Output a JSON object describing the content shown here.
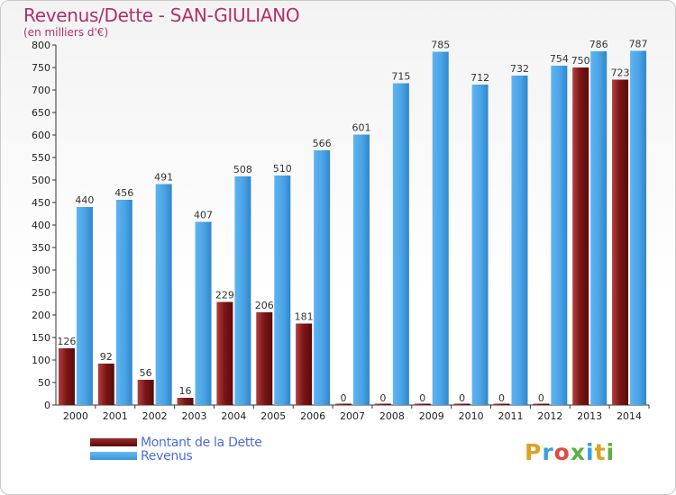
{
  "header": {
    "title": "Revenus/Dette - SAN-GIULIANO",
    "subtitle": "(en milliers d'€)"
  },
  "legend": {
    "items": [
      {
        "label": "Montant de la Dette",
        "color": "#8b1a1a"
      },
      {
        "label": "Revenus",
        "color": "#4aa3e6"
      }
    ]
  },
  "logo": {
    "text": "Proxiti"
  },
  "chart_data": {
    "type": "bar",
    "categories": [
      "2000",
      "2001",
      "2002",
      "2003",
      "2004",
      "2005",
      "2006",
      "2007",
      "2008",
      "2009",
      "2010",
      "2011",
      "2012",
      "2013",
      "2014"
    ],
    "series": [
      {
        "name": "Montant de la Dette",
        "color": "#8b1a1a",
        "values": [
          126,
          92,
          56,
          16,
          229,
          206,
          181,
          0,
          0,
          0,
          0,
          0,
          0,
          750,
          723
        ]
      },
      {
        "name": "Revenus",
        "color": "#4aa3e6",
        "values": [
          440,
          456,
          491,
          407,
          508,
          510,
          566,
          601,
          715,
          785,
          712,
          732,
          754,
          786,
          787
        ]
      }
    ],
    "ylim": [
      0,
      800
    ],
    "yticks": [
      0,
      50,
      100,
      150,
      200,
      250,
      300,
      350,
      400,
      450,
      500,
      550,
      600,
      650,
      700,
      750,
      800
    ],
    "grid": false,
    "legend_position": "bottom-left"
  }
}
